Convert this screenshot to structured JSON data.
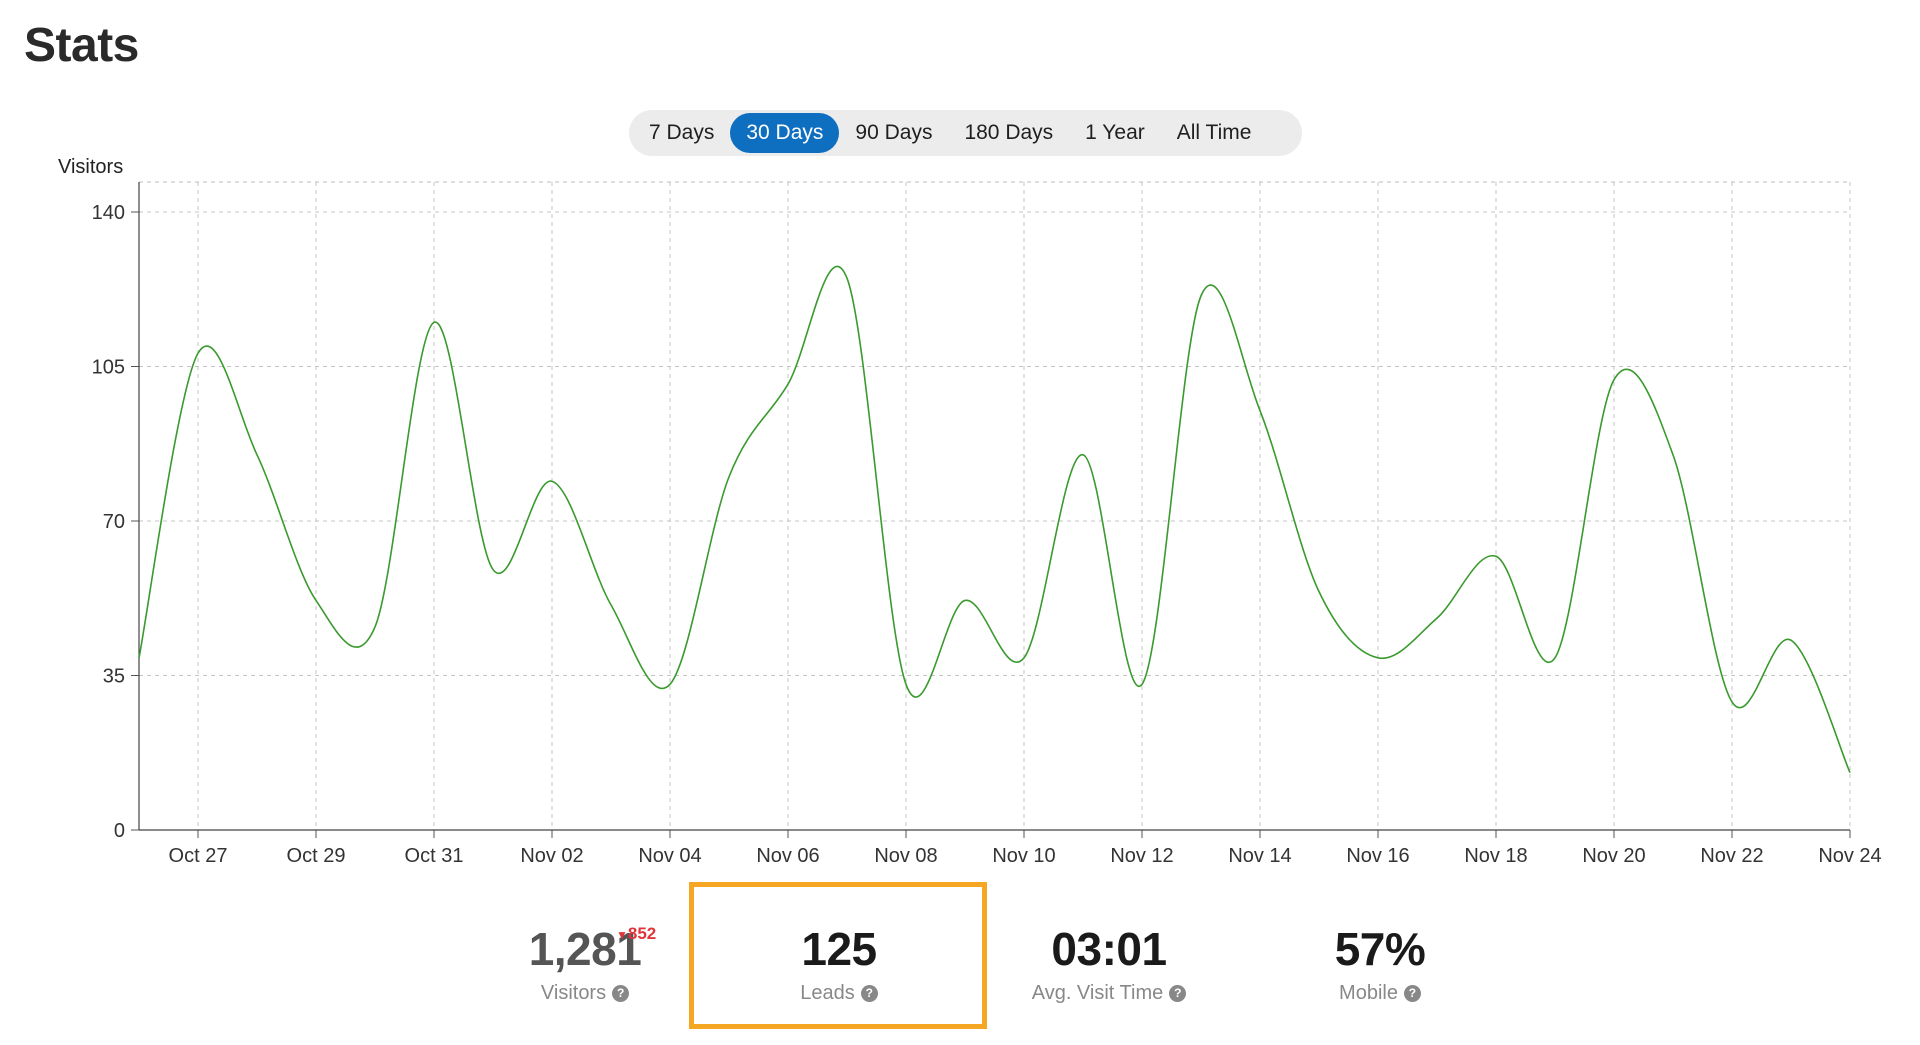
{
  "page": {
    "title": "Stats"
  },
  "range_selector": {
    "options": [
      "7 Days",
      "30 Days",
      "90 Days",
      "180 Days",
      "1 Year",
      "All Time"
    ],
    "active": "30 Days"
  },
  "chart_data": {
    "type": "line",
    "ylabel": "Visitors",
    "ylim": [
      0,
      140
    ],
    "yticks": [
      0,
      35,
      70,
      105,
      140
    ],
    "xtick_labels": [
      "Oct 27",
      "Oct 29",
      "Oct 31",
      "Nov 02",
      "Nov 04",
      "Nov 06",
      "Nov 08",
      "Nov 10",
      "Nov 12",
      "Nov 14",
      "Nov 16",
      "Nov 18",
      "Nov 20",
      "Nov 22",
      "Nov 24"
    ],
    "x": [
      "Oct 26",
      "Oct 27",
      "Oct 28",
      "Oct 29",
      "Oct 30",
      "Oct 31",
      "Nov 01",
      "Nov 02",
      "Nov 03",
      "Nov 04",
      "Nov 05",
      "Nov 06",
      "Nov 07",
      "Nov 08",
      "Nov 09",
      "Nov 10",
      "Nov 11",
      "Nov 12",
      "Nov 13",
      "Nov 14",
      "Nov 15",
      "Nov 16",
      "Nov 17",
      "Nov 18",
      "Nov 19",
      "Nov 20",
      "Nov 21",
      "Nov 22",
      "Nov 23",
      "Nov 24"
    ],
    "series": [
      {
        "values": [
          39,
          108,
          85,
          52,
          46,
          115,
          59,
          79,
          51,
          33,
          80,
          101,
          125,
          33,
          52,
          39,
          85,
          33,
          121,
          95,
          54,
          39,
          48,
          62,
          39,
          102,
          85,
          29,
          43,
          13
        ],
        "color": "#3a9a2e"
      }
    ],
    "grid": true
  },
  "stats": {
    "visitors": {
      "value": "1,281",
      "delta": "852",
      "label": "Visitors"
    },
    "leads": {
      "value": "125",
      "label": "Leads"
    },
    "avg_visit_time": {
      "value": "03:01",
      "label": "Avg. Visit Time"
    },
    "mobile": {
      "value": "57%",
      "label": "Mobile"
    }
  },
  "icons": {
    "help": "question-circle-icon",
    "delta": "down-triangle-icon"
  },
  "colors": {
    "accent": "#0e6fc1",
    "line": "#3a9a2e",
    "highlight": "#f5a623",
    "delta_negative": "#e0353b"
  }
}
